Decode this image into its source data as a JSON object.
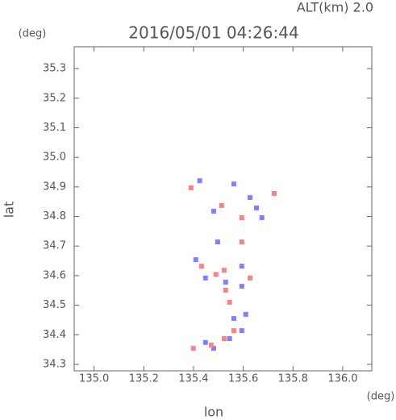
{
  "chart_data": {
    "type": "scatter",
    "title": "2016/05/01 04:26:44",
    "subtitle": "ALT(km) 2.0",
    "x_label": "lon",
    "y_label": "lat",
    "x_unit": "(deg)",
    "y_unit": "(deg)",
    "xlim": [
      134.92,
      136.117
    ],
    "ylim": [
      34.278,
      35.374
    ],
    "xticks": [
      {
        "value": 135.0,
        "label": "135.0"
      },
      135.2,
      135.4,
      135.6,
      135.8,
      {
        "value": 136.0,
        "label": "136.0"
      }
    ],
    "yticks": [
      34.3,
      34.4,
      34.5,
      34.6,
      34.7,
      34.8,
      34.9,
      {
        "value": 35.0,
        "label": "35.0"
      },
      35.1,
      35.2,
      35.3
    ],
    "series": [
      {
        "color": "#8080ff",
        "x": [
          135.425,
          135.562,
          135.653,
          135.675,
          135.409,
          135.594,
          135.529,
          135.448,
          135.594,
          135.562,
          135.61,
          135.594,
          135.545,
          135.481,
          135.448,
          135.627,
          135.497,
          135.481
        ],
        "y": [
          34.921,
          34.91,
          34.829,
          34.796,
          34.654,
          34.632,
          34.578,
          34.592,
          34.564,
          34.455,
          34.469,
          34.414,
          34.387,
          34.354,
          34.374,
          34.864,
          34.714,
          34.818
        ]
      },
      {
        "color": "#ff8080",
        "x": [
          135.39,
          135.724,
          135.594,
          135.432,
          135.49,
          135.523,
          135.627,
          135.529,
          135.545,
          135.562,
          135.523,
          135.471,
          135.399,
          135.513,
          135.594
        ],
        "y": [
          34.897,
          34.878,
          34.796,
          34.632,
          34.604,
          34.618,
          34.592,
          34.551,
          34.51,
          34.414,
          34.387,
          34.365,
          34.354,
          34.837,
          34.714
        ]
      }
    ]
  }
}
